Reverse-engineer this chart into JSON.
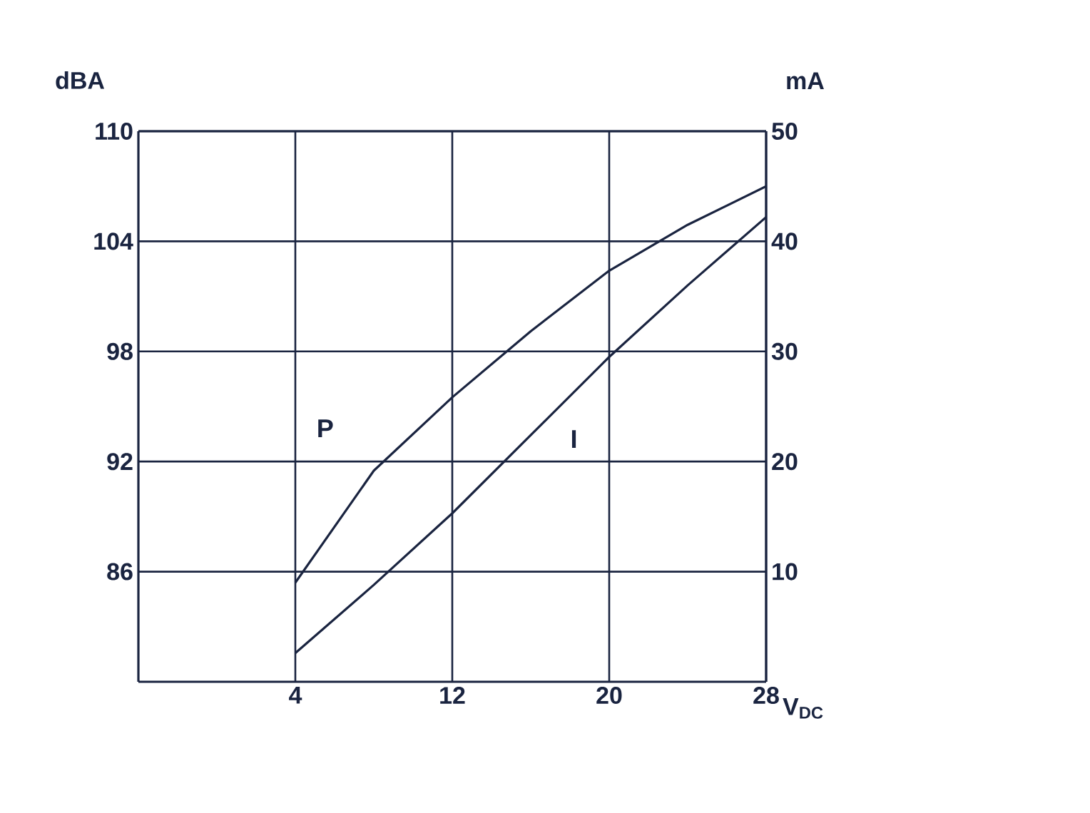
{
  "chart_data": {
    "type": "line",
    "xlabel": "V$_{DC}$",
    "ylabel": "dBA",
    "y2label": "mA",
    "x": [
      4,
      8,
      12,
      16,
      20,
      24,
      28
    ],
    "series": [
      {
        "name": "P",
        "color": "#1a2440",
        "values": [
          85.4,
          91.5,
          95.5,
          99.1,
          102.4,
          104.9,
          107
        ]
      },
      {
        "name": "I",
        "color": "#1a2440",
        "axis": "y2",
        "values": [
          2.6,
          8.8,
          15.3,
          22.4,
          29.5,
          36,
          42.2
        ]
      }
    ],
    "xlim": [
      -4,
      28
    ],
    "xticks": [
      4,
      12,
      20,
      28
    ],
    "ylim": [
      80,
      110
    ],
    "yticks": [
      86,
      92,
      98,
      104,
      110
    ],
    "y2lim": [
      0,
      50
    ],
    "y2ticks": [
      10,
      20,
      30,
      40,
      50
    ],
    "grid": true,
    "marker": "none",
    "line_style": "solid"
  }
}
